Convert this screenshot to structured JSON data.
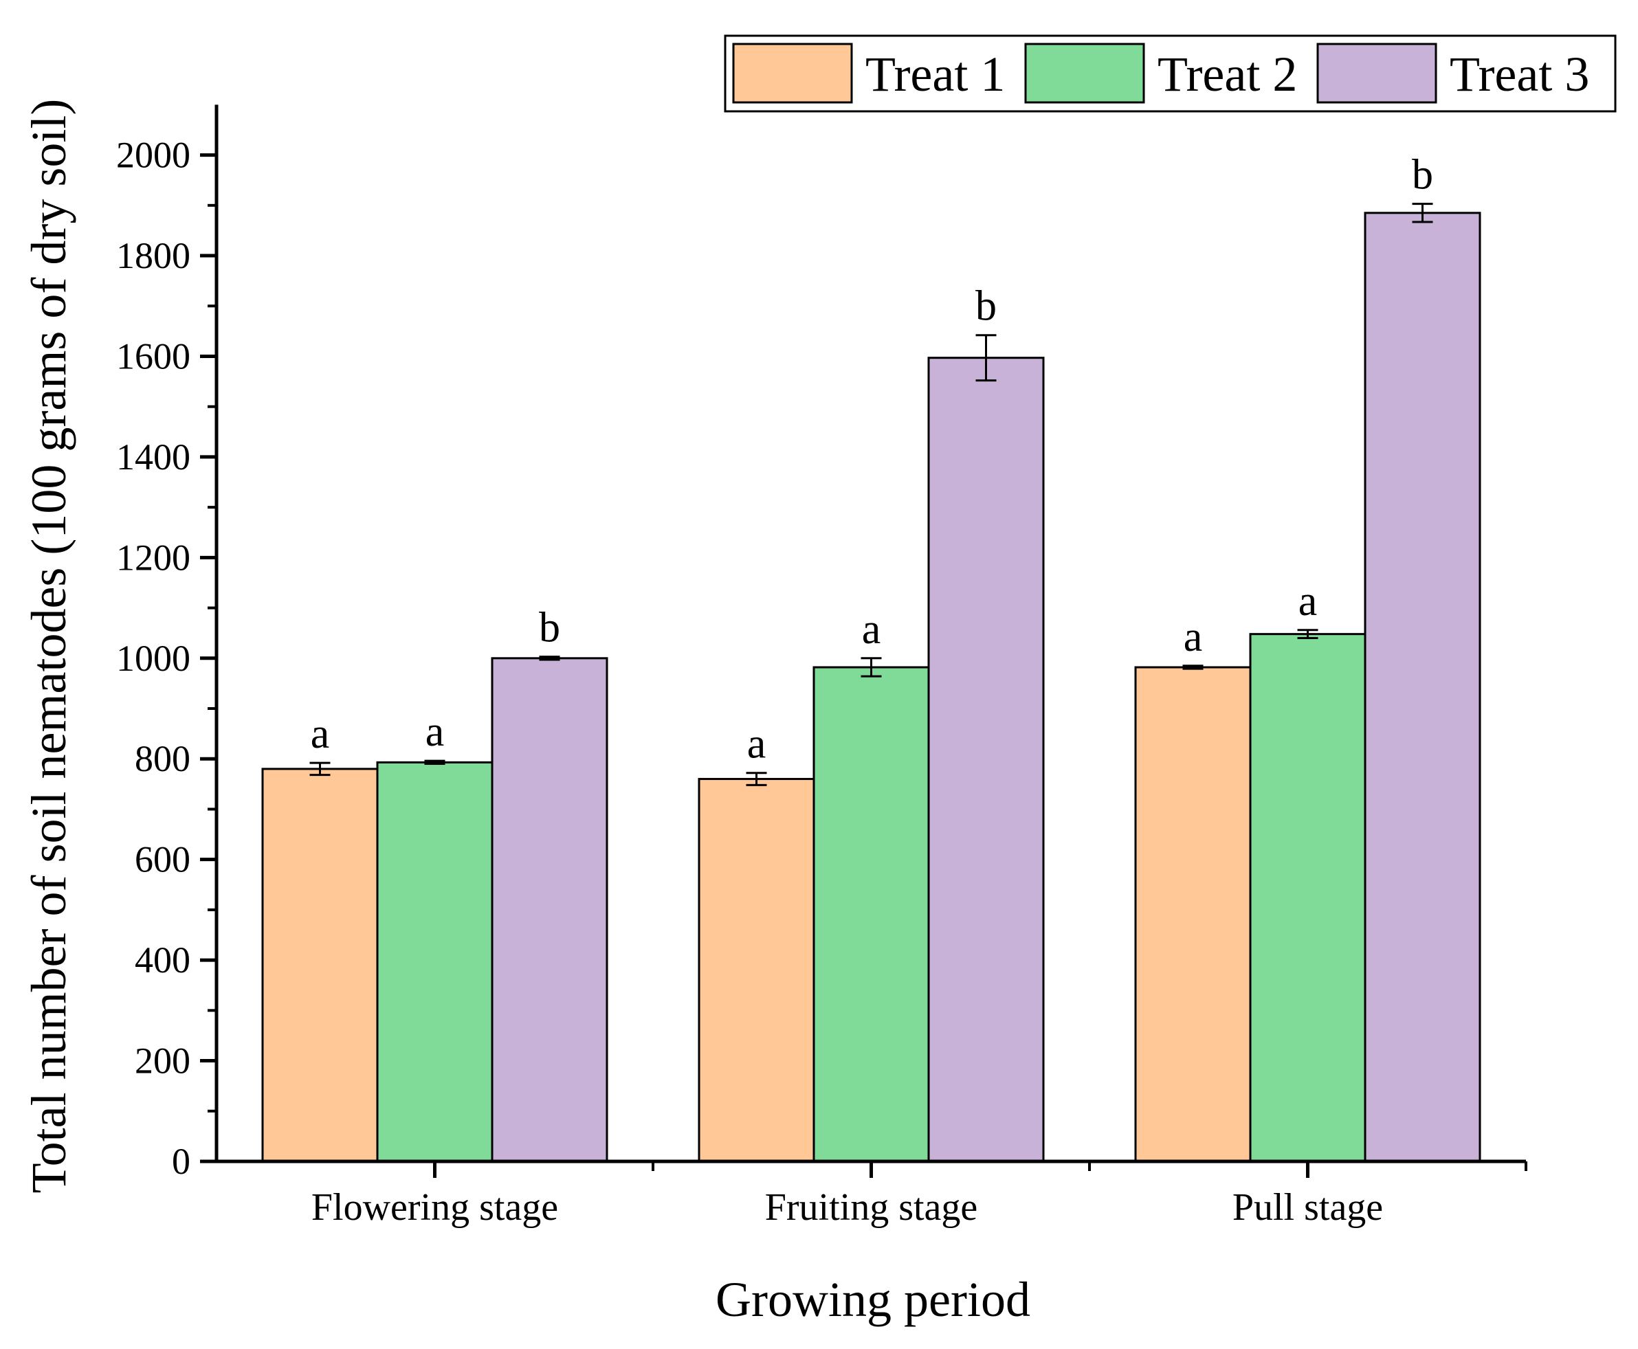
{
  "chart_data": {
    "type": "bar",
    "title": "",
    "xlabel": "Growing period",
    "ylabel": "Total number of soil nematodes (100 grams of dry soil)",
    "ylim": [
      0,
      2100
    ],
    "yticks": [
      0,
      200,
      400,
      600,
      800,
      1000,
      1200,
      1400,
      1600,
      1800,
      2000
    ],
    "categories": [
      "Flowering stage",
      "Fruiting stage",
      "Pull stage"
    ],
    "series": [
      {
        "name": "Treat 1",
        "color": "#FFC896",
        "values": [
          780,
          760,
          982
        ],
        "errors": [
          12,
          12,
          3
        ],
        "labels": [
          "a",
          "a",
          "a"
        ]
      },
      {
        "name": "Treat 2",
        "color": "#80DA98",
        "values": [
          793,
          982,
          1048
        ],
        "errors": [
          3,
          18,
          8
        ],
        "labels": [
          "a",
          "a",
          "a"
        ]
      },
      {
        "name": "Treat 3",
        "color": "#C8B2D8",
        "values": [
          1000,
          1597,
          1885
        ],
        "errors": [
          3,
          45,
          18
        ],
        "labels": [
          "b",
          "b",
          "b"
        ]
      }
    ],
    "legend_position": "top-right",
    "grid": false
  }
}
